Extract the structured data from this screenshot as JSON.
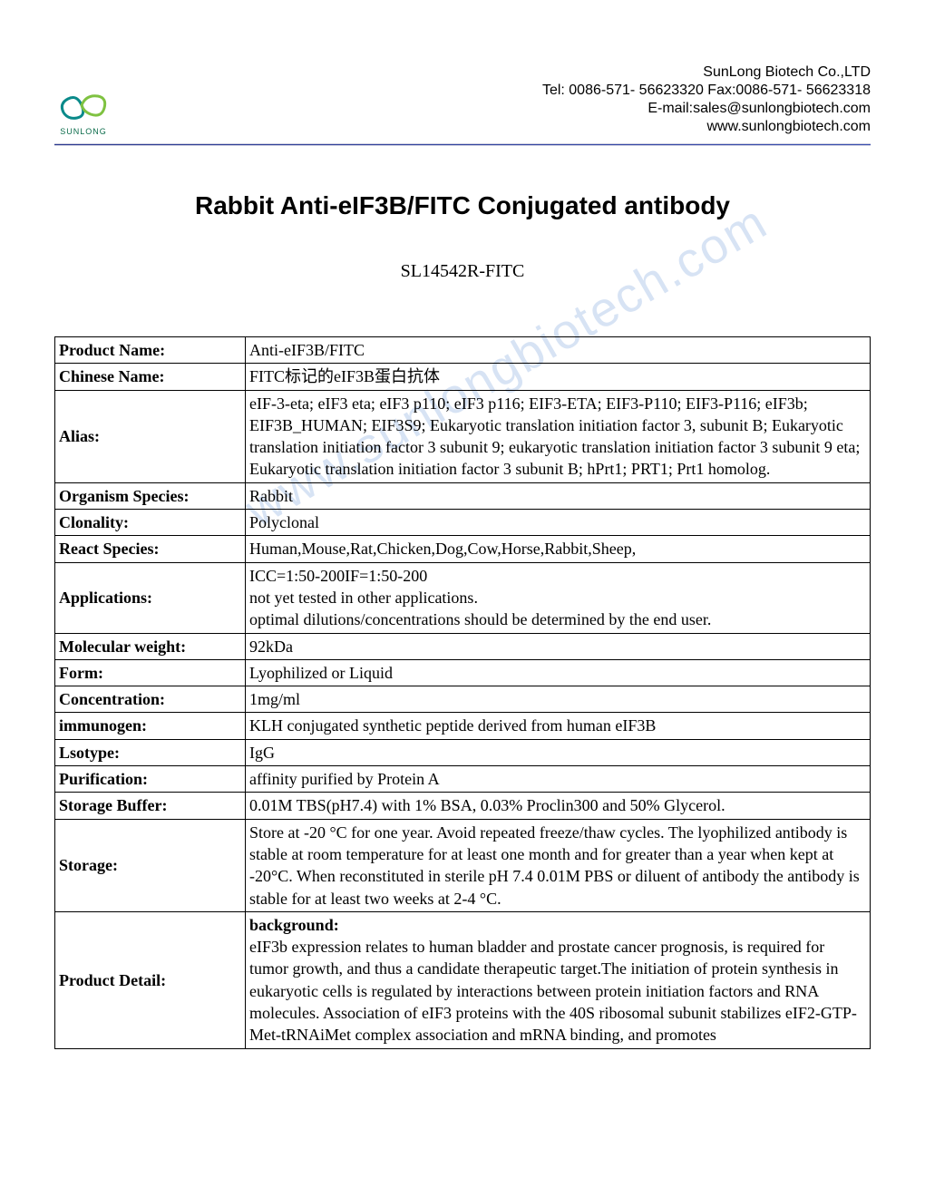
{
  "header": {
    "logo_label": "SUNLONG",
    "company_name": "SunLong Biotech Co.,LTD",
    "tel_fax": "Tel: 0086-571- 56623320 Fax:0086-571- 56623318",
    "email": "E-mail:sales@sunlongbiotech.com",
    "website": "www.sunlongbiotech.com"
  },
  "title": "Rabbit Anti-eIF3B/FITC Conjugated antibody",
  "sku": "SL14542R-FITC",
  "watermark": "www.sunlongbiotech.com",
  "table": {
    "rows": [
      {
        "label": "Product Name:",
        "value": "Anti-eIF3B/FITC"
      },
      {
        "label": "Chinese Name:",
        "value": "FITC标记的eIF3B蛋白抗体"
      },
      {
        "label": "Alias:",
        "value": "eIF-3-eta; eIF3 eta; eIF3 p110; eIF3 p116; EIF3-ETA; EIF3-P110; EIF3-P116; eIF3b; EIF3B_HUMAN; EIF3S9; Eukaryotic translation initiation factor 3, subunit B; Eukaryotic translation initiation factor 3 subunit 9; eukaryotic translation initiation factor 3 subunit 9 eta; Eukaryotic translation initiation factor 3 subunit B; hPrt1; PRT1; Prt1 homolog."
      },
      {
        "label": "Organism Species:",
        "value": "Rabbit"
      },
      {
        "label": "Clonality:",
        "value": "Polyclonal"
      },
      {
        "label": "React Species:",
        "value": "Human,Mouse,Rat,Chicken,Dog,Cow,Horse,Rabbit,Sheep,"
      },
      {
        "label": "Applications:",
        "value": "ICC=1:50-200IF=1:50-200\nnot yet tested in other applications.\noptimal dilutions/concentrations should be determined by the end user."
      },
      {
        "label": "Molecular weight:",
        "value": "92kDa"
      },
      {
        "label": "Form:",
        "value": "Lyophilized or Liquid"
      },
      {
        "label": "Concentration:",
        "value": "1mg/ml"
      },
      {
        "label": "immunogen:",
        "value": "KLH conjugated synthetic peptide derived from human eIF3B"
      },
      {
        "label": "Lsotype:",
        "value": "IgG"
      },
      {
        "label": "Purification:",
        "value": "affinity purified by Protein A"
      },
      {
        "label": "Storage Buffer:",
        "value": "0.01M TBS(pH7.4) with 1% BSA, 0.03% Proclin300 and 50% Glycerol."
      },
      {
        "label": "Storage:",
        "value": "Store at -20 °C for one year. Avoid repeated freeze/thaw cycles. The lyophilized antibody is stable at room temperature for at least one month and for greater than a year when kept at -20°C. When reconstituted in sterile pH 7.4 0.01M PBS or diluent of antibody the antibody is stable for at least two weeks at 2-4 °C."
      }
    ],
    "detail": {
      "label": "Product Detail:",
      "heading": "background:",
      "body": "eIF3b expression relates to human bladder and prostate cancer prognosis, is required for tumor growth, and thus a candidate therapeutic target.The initiation of protein synthesis in eukaryotic cells is regulated by interactions between protein initiation factors and RNA molecules. Association of eIF3 proteins with the 40S ribosomal subunit stabilizes eIF2-GTP-Met-tRNAiMet complex association and mRNA binding, and promotes"
    }
  },
  "styling": {
    "page_bg": "#ffffff",
    "text_color": "#000000",
    "divider_color": "#2b3a8f",
    "watermark_color": "#d7e3f4",
    "logo_green": "#7fc241",
    "logo_teal": "#0a8a8a",
    "title_fontsize": 28,
    "body_fontsize": 18,
    "sku_fontsize": 20
  }
}
